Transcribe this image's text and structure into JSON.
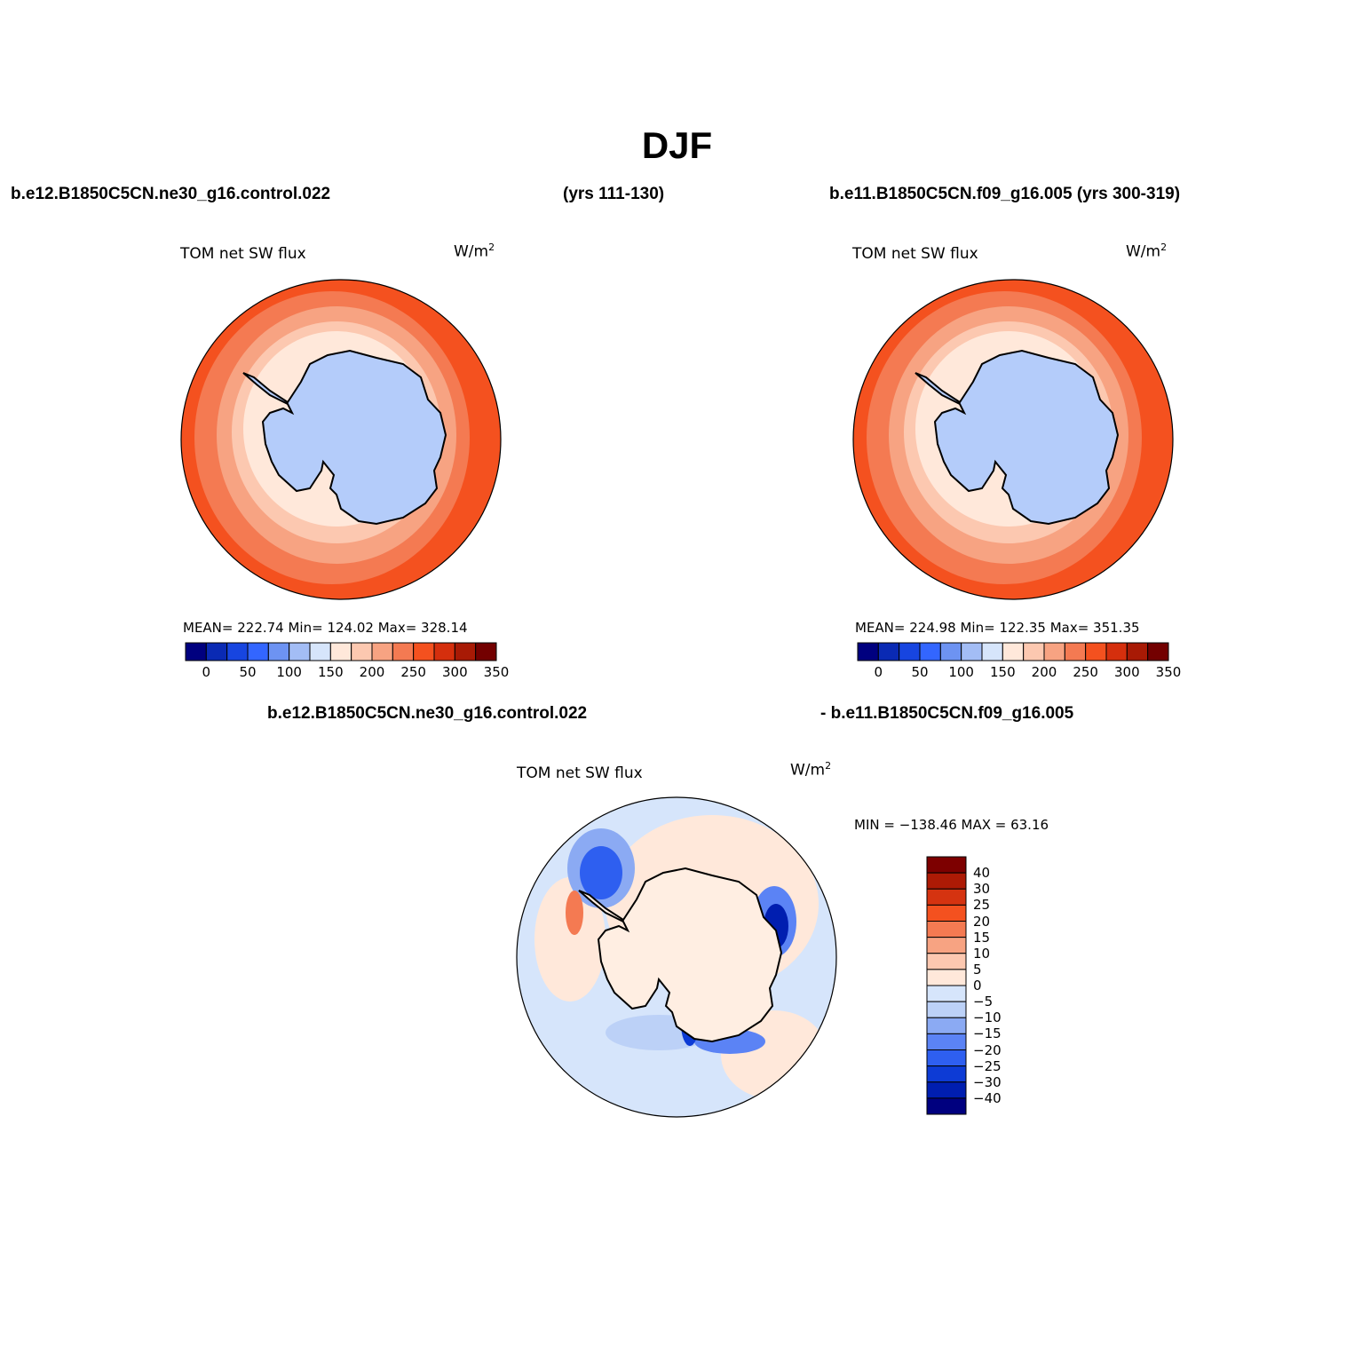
{
  "title": "DJF",
  "headers": {
    "left": "b.e12.B1850C5CN.ne30_g16.control.022",
    "middle": "(yrs 111-130)",
    "right": "b.e11.B1850C5CN.f09_g16.005 (yrs 300-319)",
    "diff_left": "b.e12.B1850C5CN.ne30_g16.control.022",
    "diff_right": "- b.e11.B1850C5CN.f09_g16.005"
  },
  "panels": [
    {
      "variable": "TOM net SW flux",
      "units_base": "W/m",
      "units_exp": "2",
      "stats": "MEAN= 222.74   Min= 124.02   Max= 328.14",
      "colorbar_labels": [
        "0",
        "50",
        "100",
        "150",
        "200",
        "250",
        "300",
        "350"
      ]
    },
    {
      "variable": "TOM net SW flux",
      "units_base": "W/m",
      "units_exp": "2",
      "stats": "MEAN= 224.98   Min= 122.35   Max= 351.35",
      "colorbar_labels": [
        "0",
        "50",
        "100",
        "150",
        "200",
        "250",
        "300",
        "350"
      ]
    }
  ],
  "diff_panel": {
    "variable": "TOM net SW flux",
    "units_base": "W/m",
    "units_exp": "2",
    "stats": "MIN = −138.46  MAX =   63.16",
    "colorbar_labels": [
      "40",
      "30",
      "25",
      "20",
      "15",
      "10",
      "5",
      "0",
      "−5",
      "−10",
      "−15",
      "−20",
      "−25",
      "−30",
      "−40"
    ]
  },
  "colors": {
    "abs_scale": [
      "#00007f",
      "#0a2ab4",
      "#1745e0",
      "#3366ff",
      "#6d93f2",
      "#a3bdf5",
      "#d6e5fb",
      "#ffe8da",
      "#fcc8b0",
      "#f7a382",
      "#f47a52",
      "#f4511f",
      "#d52f0d",
      "#a81a05",
      "#730000"
    ],
    "diff_scale": [
      "#7d0000",
      "#ad1a05",
      "#d53310",
      "#f4511f",
      "#f47a52",
      "#f7a382",
      "#fcc8b0",
      "#ffe8da",
      "#d6e5fb",
      "#bcd1f7",
      "#8baaf3",
      "#5b83f5",
      "#2e5ff0",
      "#0d3bd5",
      "#001eb0",
      "#00007f"
    ],
    "land_abs": "#b4ccfa",
    "land_diff": "#ffeee2"
  }
}
